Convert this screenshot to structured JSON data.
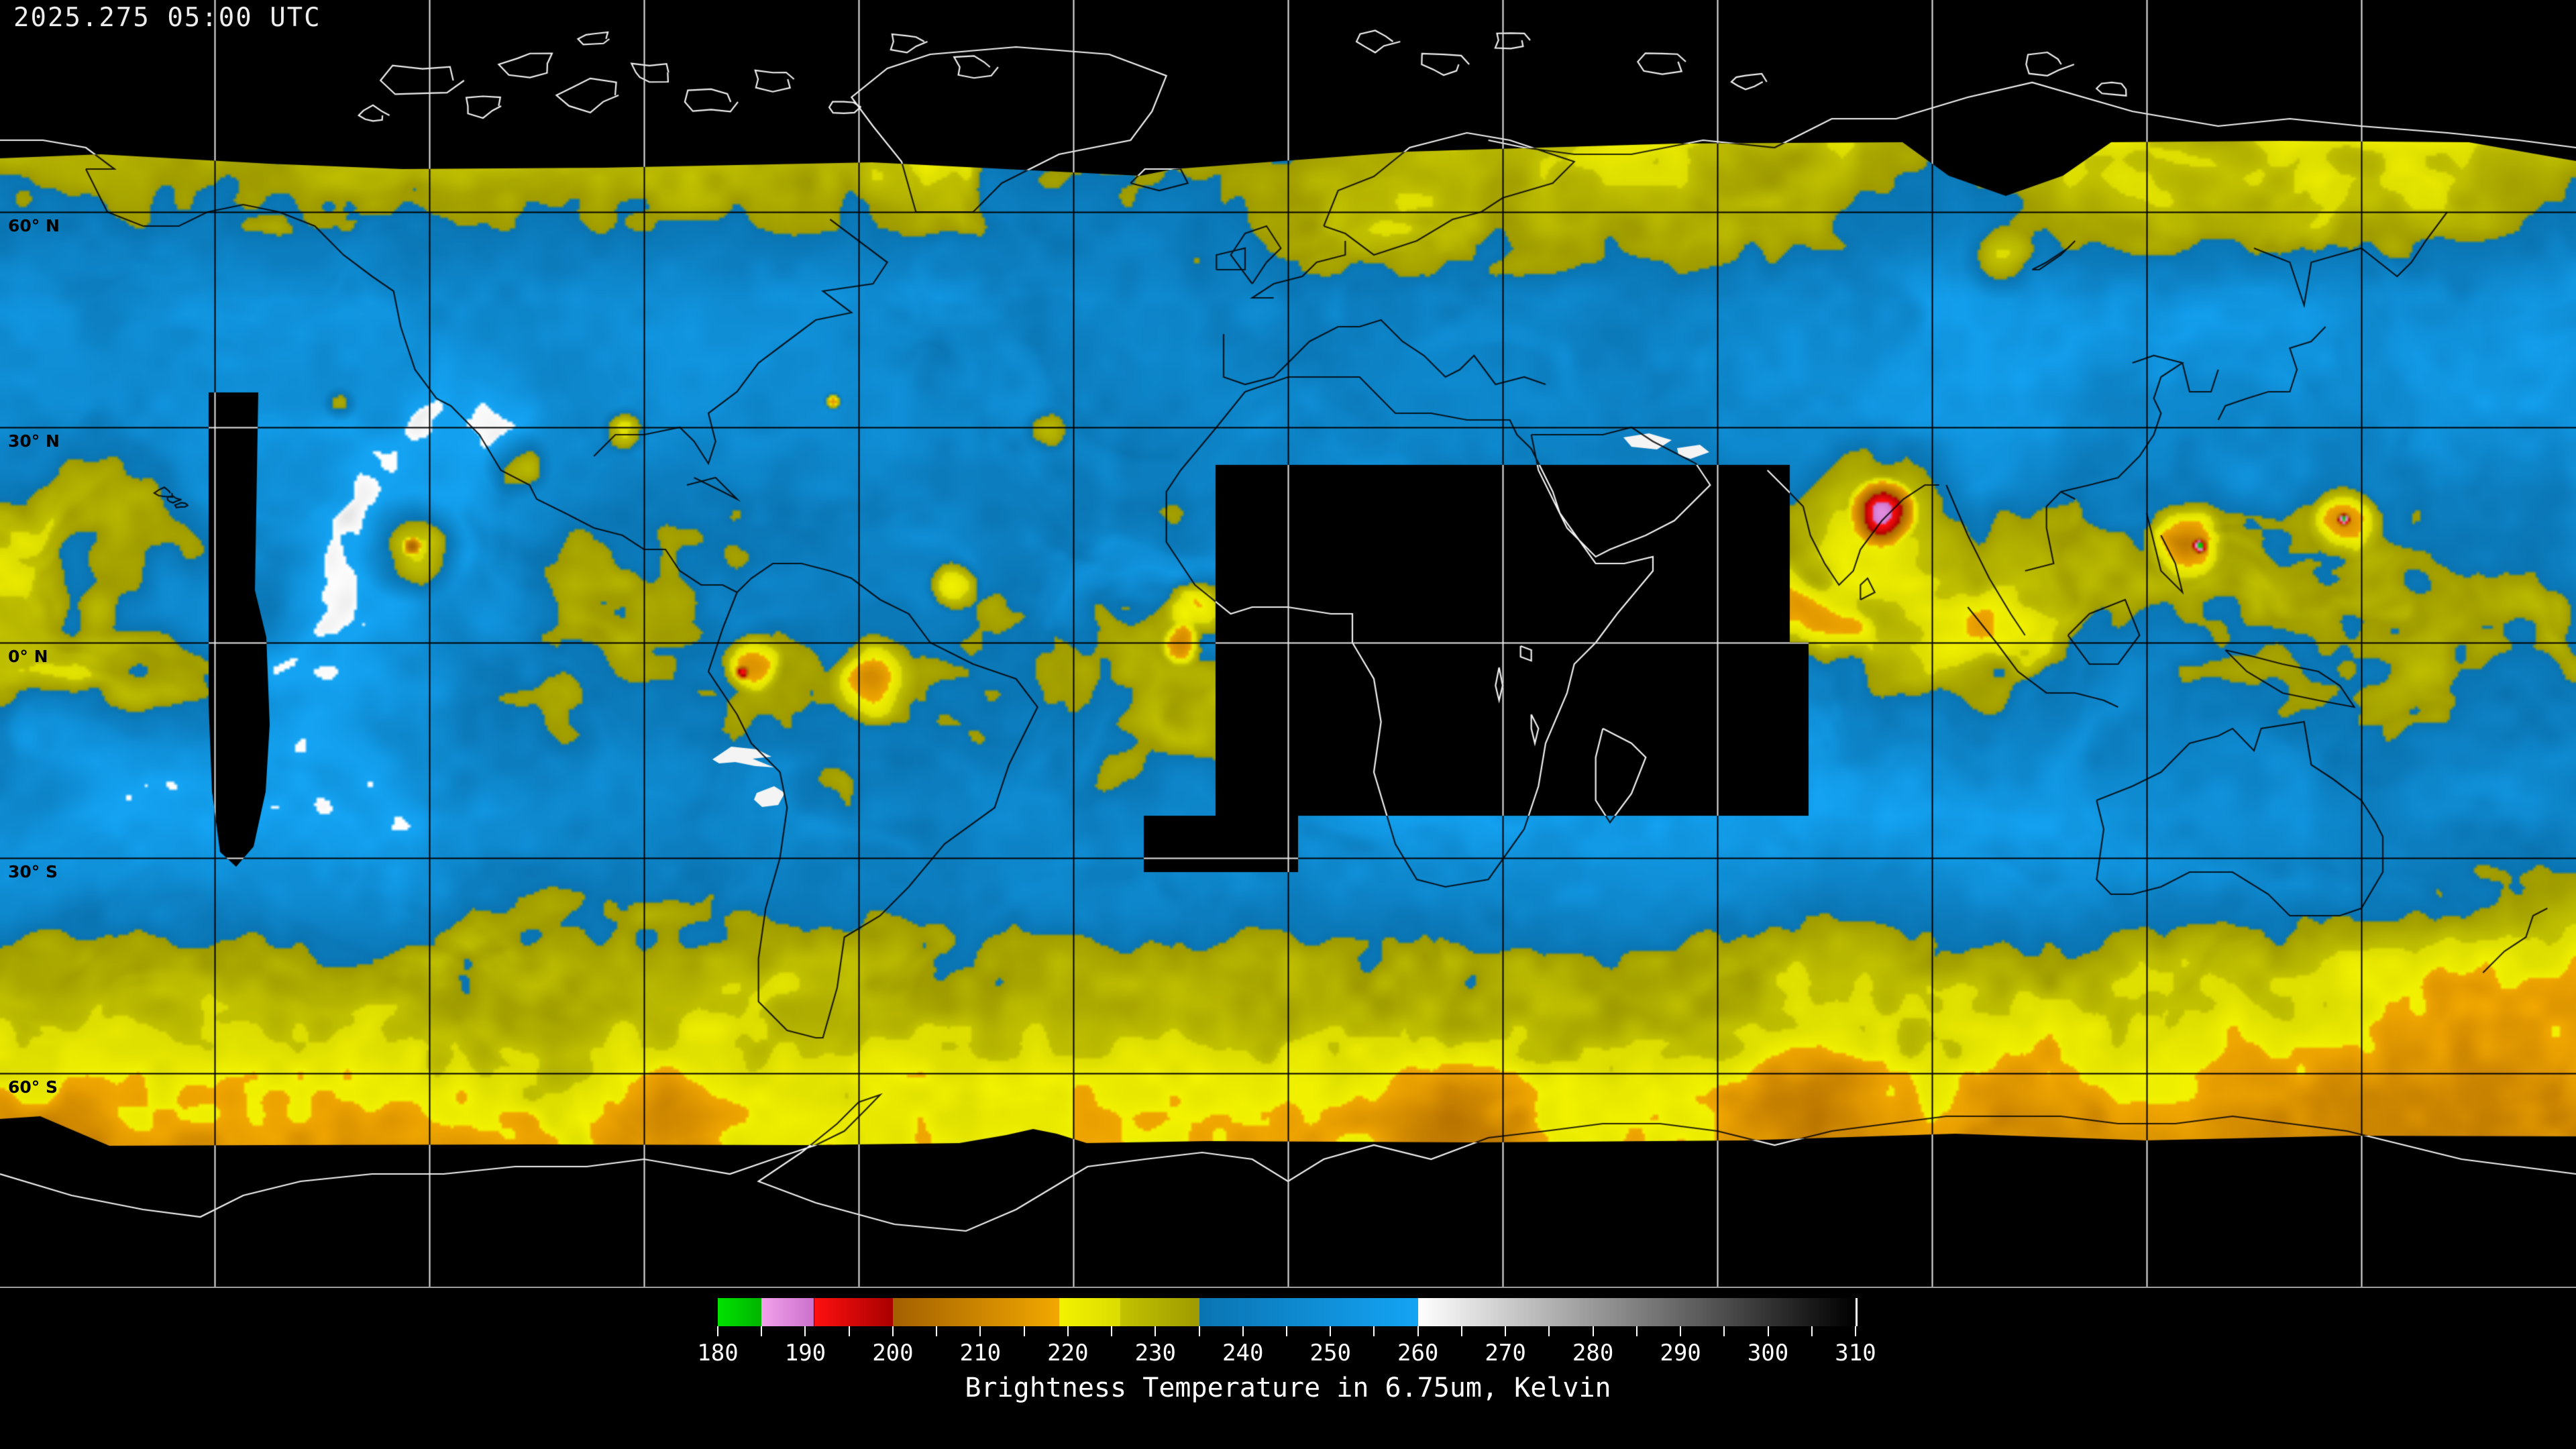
{
  "header": {
    "timestamp": "2025.275 05:00 UTC"
  },
  "map": {
    "latitude_labels": [
      {
        "label": "60° N",
        "lat": 60
      },
      {
        "label": "30° N",
        "lat": 30
      },
      {
        "label": "0° N",
        "lat": 0
      },
      {
        "label": "30° S",
        "lat": -30
      },
      {
        "label": "60° S",
        "lat": -60
      }
    ],
    "grid": {
      "lat_lines": [
        60,
        30,
        0,
        -30,
        -60
      ],
      "lon_step_deg": 30,
      "lat_step_deg": 30,
      "line_color_over_data": "#000000",
      "line_color_over_void": "#e8e8e8"
    },
    "colors": {
      "background": "#000000",
      "clear_sky_blue": "#0d86c4",
      "cloud_yellow": "#e6e600",
      "cloud_olive": "#a8a400",
      "deep_convection_orange": "#f0a000",
      "severe_convection_red": "#e01010",
      "coldest_violet": "#e296e0",
      "coldest_green": "#00d400",
      "warm_white_patch": "#f4f4f4",
      "coastline_over_data": "#000000",
      "coastline_over_void": "#f2f2f2"
    }
  },
  "colorbar": {
    "title": "Brightness Temperature in 6.75um, Kelvin",
    "unit": "Kelvin",
    "min": 180,
    "max": 310,
    "tick_step": 5,
    "label_step": 10,
    "tick_labels": [
      "180",
      "190",
      "200",
      "210",
      "220",
      "230",
      "240",
      "250",
      "260",
      "270",
      "280",
      "290",
      "300",
      "310"
    ],
    "segments": [
      {
        "from": 180,
        "to": 185,
        "start": "#00e200",
        "end": "#00b400"
      },
      {
        "from": 185,
        "to": 191,
        "start": "#f2a2ec",
        "end": "#cc70cc"
      },
      {
        "from": 191,
        "to": 200,
        "start": "#ff1010",
        "end": "#a80000"
      },
      {
        "from": 200,
        "to": 219,
        "start": "#a36000",
        "end": "#f2a800"
      },
      {
        "from": 219,
        "to": 226,
        "start": "#f2f200",
        "end": "#dcdc00"
      },
      {
        "from": 226,
        "to": 235,
        "start": "#c2c200",
        "end": "#9e9a00"
      },
      {
        "from": 235,
        "to": 260,
        "start": "#0a74b2",
        "end": "#14a4f4"
      },
      {
        "from": 260,
        "to": 310,
        "start": "#ffffff",
        "end": "#000000"
      }
    ]
  }
}
